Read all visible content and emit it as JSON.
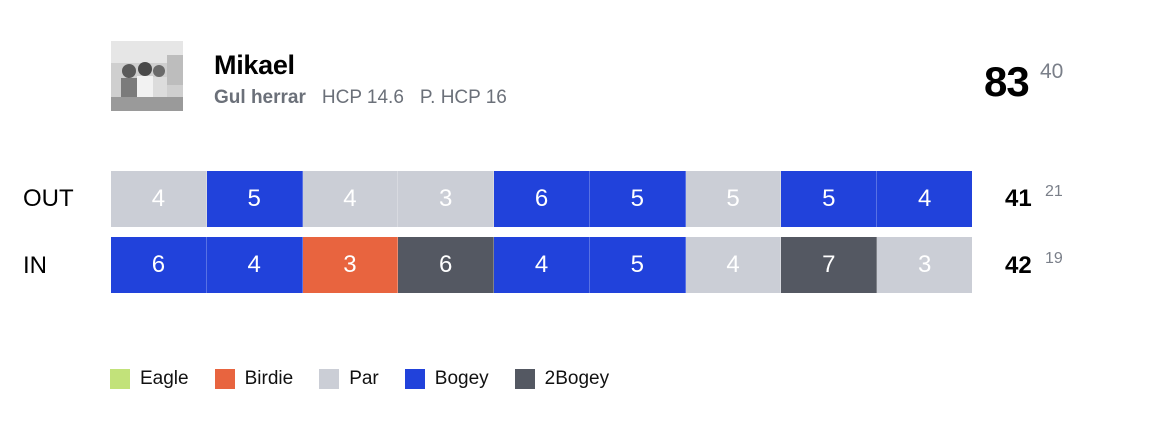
{
  "player": {
    "name": "Mikael",
    "tee": "Gul herrar",
    "hcp": "HCP 14.6",
    "playing_hcp": "P. HCP 16",
    "total_score": "83",
    "total_points": "40"
  },
  "colors": {
    "eagle": "#c2e27a",
    "birdie": "#e8643f",
    "par": "#cbced6",
    "bogey": "#2142db",
    "double_bogey": "#545862"
  },
  "rows": [
    {
      "label": "OUT",
      "score": "41",
      "points": "21",
      "holes": [
        {
          "strokes": "4",
          "result": "par"
        },
        {
          "strokes": "5",
          "result": "bogey"
        },
        {
          "strokes": "4",
          "result": "par"
        },
        {
          "strokes": "3",
          "result": "par"
        },
        {
          "strokes": "6",
          "result": "bogey"
        },
        {
          "strokes": "5",
          "result": "bogey"
        },
        {
          "strokes": "5",
          "result": "par"
        },
        {
          "strokes": "5",
          "result": "bogey"
        },
        {
          "strokes": "4",
          "result": "bogey"
        }
      ]
    },
    {
      "label": "IN",
      "score": "42",
      "points": "19",
      "holes": [
        {
          "strokes": "6",
          "result": "bogey"
        },
        {
          "strokes": "4",
          "result": "bogey"
        },
        {
          "strokes": "3",
          "result": "birdie"
        },
        {
          "strokes": "6",
          "result": "double_bogey"
        },
        {
          "strokes": "4",
          "result": "bogey"
        },
        {
          "strokes": "5",
          "result": "bogey"
        },
        {
          "strokes": "4",
          "result": "par"
        },
        {
          "strokes": "7",
          "result": "double_bogey"
        },
        {
          "strokes": "3",
          "result": "par"
        }
      ]
    }
  ],
  "legend": [
    {
      "label": "Eagle",
      "result": "eagle"
    },
    {
      "label": "Birdie",
      "result": "birdie"
    },
    {
      "label": "Par",
      "result": "par"
    },
    {
      "label": "Bogey",
      "result": "bogey"
    },
    {
      "label": "2Bogey",
      "result": "double_bogey"
    }
  ]
}
